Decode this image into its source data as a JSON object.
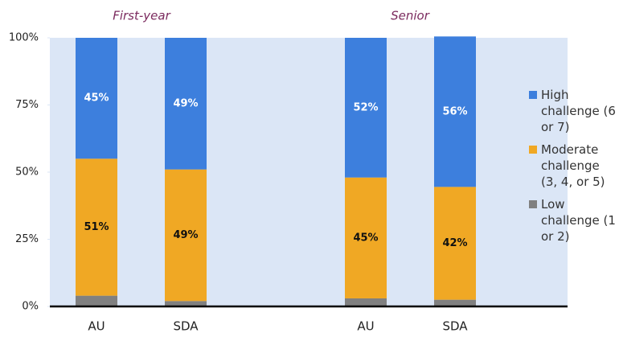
{
  "chart_data": {
    "type": "stacked_bar",
    "groups": [
      "First-year",
      "Senior"
    ],
    "categories": [
      "AU",
      "SDA",
      "AU",
      "SDA"
    ],
    "series": [
      {
        "name": "Low challenge (1 or 2)",
        "color": "#808080",
        "values": [
          4,
          2,
          3,
          2.5
        ]
      },
      {
        "name": "Moderate challenge (3, 4, or 5)",
        "color": "#f0a824",
        "values": [
          51,
          49,
          45,
          42
        ],
        "value_labels": [
          "51%",
          "49%",
          "45%",
          "42%"
        ]
      },
      {
        "name": "High challenge (6 or 7)",
        "color": "#3d7fdd",
        "values": [
          45,
          49,
          52,
          56
        ],
        "value_labels": [
          "45%",
          "49%",
          "52%",
          "56%"
        ]
      }
    ],
    "ylim": [
      0,
      100
    ],
    "yticks": [
      {
        "value": 0,
        "label": "0%"
      },
      {
        "value": 25,
        "label": "25%"
      },
      {
        "value": 50,
        "label": "50%"
      },
      {
        "value": 75,
        "label": "75%"
      },
      {
        "value": 100,
        "label": "100%"
      }
    ],
    "grid": false,
    "legend": "right"
  }
}
